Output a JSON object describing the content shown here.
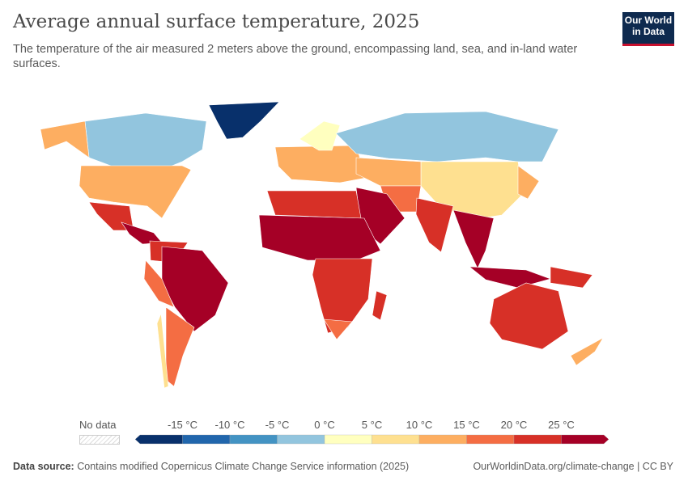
{
  "header": {
    "title": "Average annual surface temperature, 2025",
    "subtitle": "The temperature of the air measured 2 meters above the ground, encompassing land, sea, and in-land water surfaces.",
    "logo_text": "Our World in Data"
  },
  "legend": {
    "no_data_label": "No data",
    "bins": [
      {
        "color": "#08306b"
      },
      {
        "color": "#2166ac"
      },
      {
        "color": "#4393c3"
      },
      {
        "color": "#92c5de"
      },
      {
        "color": "#ffffbf"
      },
      {
        "color": "#fee090"
      },
      {
        "color": "#fdae61"
      },
      {
        "color": "#f46d43"
      },
      {
        "color": "#d73027"
      },
      {
        "color": "#a50026"
      }
    ],
    "tick_labels": [
      "-15 °C",
      "-10 °C",
      "-5 °C",
      "0 °C",
      "5 °C",
      "10 °C",
      "15 °C",
      "20 °C",
      "25 °C"
    ]
  },
  "map_regions": [
    {
      "region": "greenland",
      "bin": 0
    },
    {
      "region": "canada",
      "bin": 3
    },
    {
      "region": "alaska",
      "bin": 6
    },
    {
      "region": "usa",
      "bin": 6
    },
    {
      "region": "mexico",
      "bin": 8
    },
    {
      "region": "central-america",
      "bin": 9
    },
    {
      "region": "northern-south-america",
      "bin": 8
    },
    {
      "region": "brazil",
      "bin": 9
    },
    {
      "region": "andes",
      "bin": 7
    },
    {
      "region": "argentina",
      "bin": 7
    },
    {
      "region": "chile",
      "bin": 5
    },
    {
      "region": "europe",
      "bin": 6
    },
    {
      "region": "scandinavia",
      "bin": 4
    },
    {
      "region": "russia",
      "bin": 3
    },
    {
      "region": "china",
      "bin": 5
    },
    {
      "region": "central-asia",
      "bin": 6
    },
    {
      "region": "iran",
      "bin": 7
    },
    {
      "region": "arabia",
      "bin": 9
    },
    {
      "region": "india",
      "bin": 8
    },
    {
      "region": "southeast-asia",
      "bin": 9
    },
    {
      "region": "indonesia",
      "bin": 9
    },
    {
      "region": "new-guinea",
      "bin": 8
    },
    {
      "region": "australia",
      "bin": 8
    },
    {
      "region": "new-zealand",
      "bin": 6
    },
    {
      "region": "japan",
      "bin": 6
    },
    {
      "region": "north-africa",
      "bin": 8
    },
    {
      "region": "west-central-africa",
      "bin": 9
    },
    {
      "region": "southern-africa",
      "bin": 8
    },
    {
      "region": "south-africa",
      "bin": 7
    },
    {
      "region": "madagascar",
      "bin": 8
    }
  ],
  "footer": {
    "source_label": "Data source:",
    "source_text": "Contains modified Copernicus Climate Change Service information (2025)",
    "link": "OurWorldinData.org/climate-change | CC BY"
  }
}
